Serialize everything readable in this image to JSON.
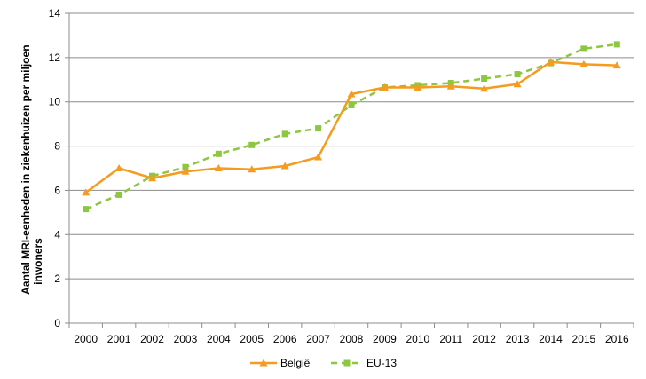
{
  "chart_data": {
    "type": "line",
    "x": [
      "2000",
      "2001",
      "2002",
      "2003",
      "2004",
      "2005",
      "2006",
      "2007",
      "2008",
      "2009",
      "2010",
      "2011",
      "2012",
      "2013",
      "2014",
      "2015",
      "2016"
    ],
    "series": [
      {
        "name": "België",
        "color": "#f59b1f",
        "marker": "triangle",
        "line_style": "solid",
        "values": [
          5.9,
          7.0,
          6.55,
          6.85,
          7.0,
          6.95,
          7.1,
          7.5,
          10.35,
          10.65,
          10.65,
          10.7,
          10.6,
          10.8,
          11.8,
          11.7,
          11.65
        ]
      },
      {
        "name": "EU-13",
        "color": "#8dc63f",
        "marker": "square",
        "line_style": "dashed",
        "values": [
          5.15,
          5.8,
          6.65,
          7.05,
          7.65,
          8.05,
          8.55,
          8.8,
          9.85,
          10.65,
          10.75,
          10.85,
          11.05,
          11.25,
          11.75,
          12.4,
          12.6
        ]
      }
    ],
    "ylabel_lines": [
      "Aantal MRI-eenheden in ziekenhuizen per miljoen",
      "inwoners"
    ],
    "y_ticks": [
      "0",
      "2",
      "4",
      "6",
      "8",
      "10",
      "12",
      "14"
    ],
    "ylim": [
      0,
      14
    ],
    "grid": true,
    "legend_position": "bottom"
  }
}
